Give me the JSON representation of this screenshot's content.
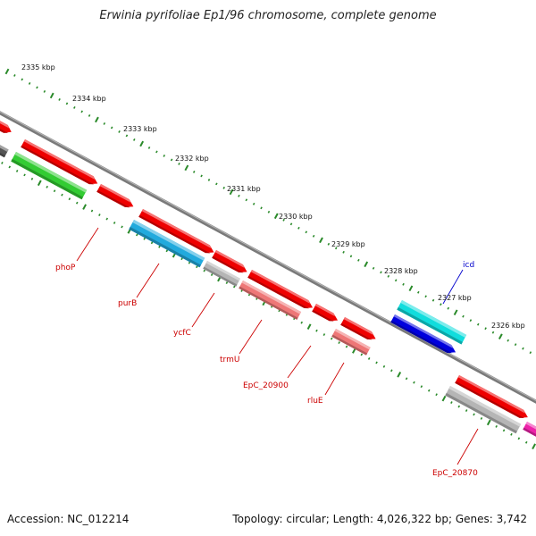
{
  "title": "Erwinia pyrifoliae Ep1/96 chromosome, complete genome",
  "footer": {
    "accession": "Accession: NC_012214",
    "summary": "Topology: circular; Length: 4,026,322 bp; Genes: 3,742"
  },
  "colors": {
    "backbone": "#7a7a7a",
    "tick": "#2a8a2a",
    "label_red": "#cc0000",
    "label_blue": "#0000cc",
    "red_gene": "#ee0000",
    "green_gene": "#33cc33",
    "skyblue_gene": "#22aadd",
    "cyan_gene": "#11dddd",
    "blue_gene": "#0000dd",
    "gray_gene": "#b5b5b5",
    "salmon_gene": "#ee7777",
    "magenta_gene": "#ee22aa",
    "dark_gene": "#555555"
  },
  "scale": {
    "unit": "kbp",
    "labels": [
      "2335 kbp",
      "2334 kbp",
      "2333 kbp",
      "2332 kbp",
      "2331 kbp",
      "2330 kbp",
      "2329 kbp",
      "2328 kbp",
      "2327 kbp",
      "2326 kbp"
    ]
  },
  "gene_labels": [
    "phoP",
    "purB",
    "ycfC",
    "trmU",
    "EpC_20900",
    "rluE",
    "icd",
    "EpC_20870"
  ]
}
